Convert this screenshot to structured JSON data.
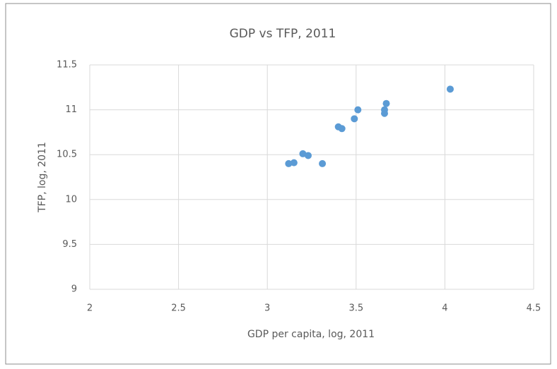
{
  "chart_data": {
    "type": "scatter",
    "title": "GDP vs TFP, 2011",
    "x_label": "GDP per capita, log, 2011",
    "y_label": "TFP, log, 2011",
    "series": [
      {
        "color": "#5b9bd5",
        "x": [
          3.12,
          3.15,
          3.2,
          3.23,
          3.31,
          3.4,
          3.42,
          3.49,
          3.51,
          3.66,
          3.66,
          3.67,
          4.03
        ],
        "values": [
          10.4,
          10.41,
          10.51,
          10.49,
          10.4,
          10.81,
          10.79,
          10.9,
          11.0,
          11.0,
          10.96,
          11.07,
          11.23
        ]
      }
    ],
    "xlim": [
      2,
      4.5
    ],
    "xticks": [
      2,
      2.5,
      3,
      3.5,
      4,
      4.5
    ],
    "ylim": [
      9,
      11.5
    ],
    "yticks": [
      9,
      9.5,
      10,
      10.5,
      11,
      11.5
    ],
    "grid": true
  }
}
